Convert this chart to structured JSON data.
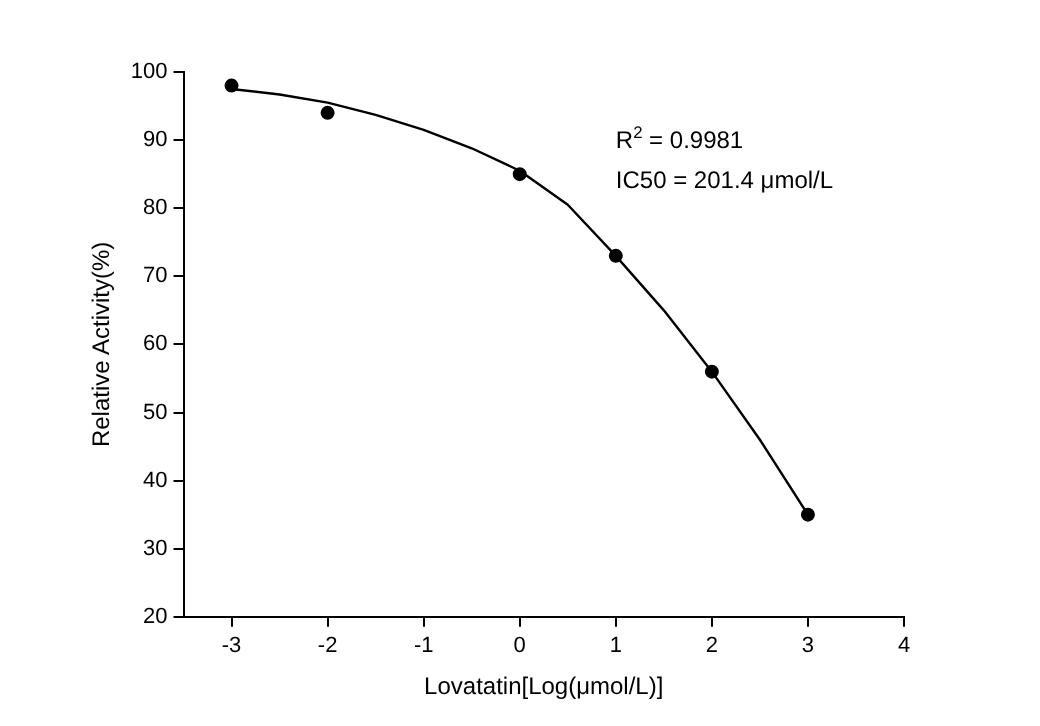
{
  "chart_data": {
    "type": "scatter",
    "xlabel": "Lovatatin[Log(μmol/L)]",
    "ylabel": "Relative Activity(%)",
    "annotations": [
      "R$^{2}$ = 0.9981",
      "IC50 = 201.4 μmol/L"
    ],
    "x": [
      -3,
      -2,
      0,
      1,
      2,
      3
    ],
    "series": [
      {
        "color": "#000000",
        "values": [
          98,
          94,
          85,
          73,
          56,
          35
        ]
      },
      {
        "type": "line",
        "color": "#000000",
        "marker": "none",
        "x": [
          -3,
          -2.5,
          -2,
          -1.5,
          -1,
          -0.5,
          0,
          0.5,
          1,
          1.5,
          2,
          2.5,
          3
        ],
        "values": [
          97.5,
          96.7,
          95.5,
          93.7,
          91.5,
          88.8,
          85.5,
          80.5,
          73,
          65,
          56,
          46,
          35
        ]
      }
    ],
    "marker": "circle",
    "line_style": "solid",
    "grid": false,
    "xlim": [
      -3.5,
      4
    ],
    "xticks": [
      -3,
      -2,
      -1,
      0,
      1,
      2,
      3,
      4
    ],
    "ylim": [
      20,
      100
    ],
    "yticks": [
      20,
      30,
      40,
      50,
      60,
      70,
      80,
      90,
      100
    ]
  }
}
